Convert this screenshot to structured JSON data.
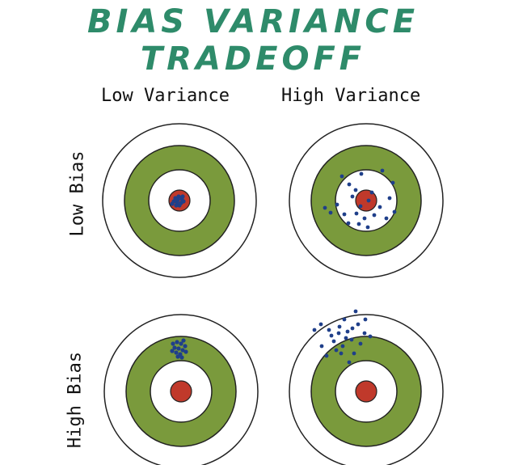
{
  "title": "BIAS VARIANCE TRADEOFF",
  "columns": [
    "Low Variance",
    "High Variance"
  ],
  "rows": [
    "Low Bias",
    "High Bias"
  ],
  "colors": {
    "title": "#2e8b6a",
    "ring_green": "#7a9a3c",
    "bullseye_red": "#c0392b",
    "dot_blue": "#1f3f8a",
    "ring_stroke": "#222222"
  }
}
